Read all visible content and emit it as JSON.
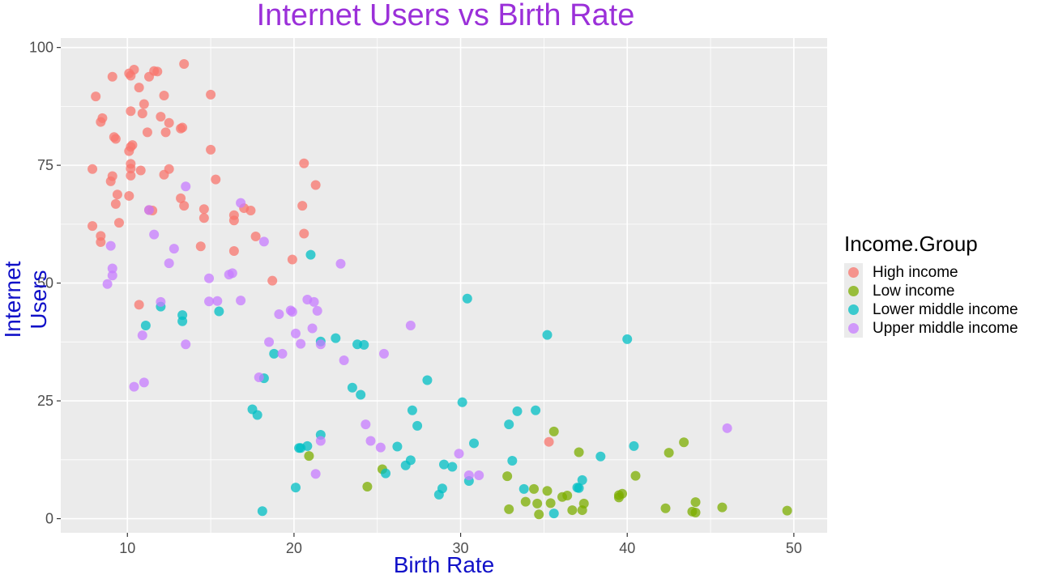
{
  "chart_data": {
    "type": "scatter",
    "title": "Internet Users vs Birth Rate",
    "xlabel": "Birth Rate",
    "ylabel": "Internet Users",
    "xlim": [
      6,
      52
    ],
    "ylim": [
      -3,
      102
    ],
    "x_ticks": [
      10,
      20,
      30,
      40,
      50
    ],
    "y_ticks": [
      0,
      25,
      50,
      75,
      100
    ],
    "grid": true,
    "legend": {
      "title": "Income.Group",
      "position": "right"
    },
    "colors": {
      "title": "#9b30d9",
      "axis_label": "#1010c8",
      "panel": "#ebebeb",
      "grid": "#ffffff"
    },
    "series": [
      {
        "name": "High income",
        "color": "#F8766D",
        "points": [
          [
            10.1,
            94.5
          ],
          [
            10.4,
            95.3
          ],
          [
            11.6,
            95.0
          ],
          [
            11.8,
            94.9
          ],
          [
            13.4,
            96.5
          ],
          [
            9.1,
            93.8
          ],
          [
            10.2,
            94.0
          ],
          [
            11.3,
            93.8
          ],
          [
            8.1,
            89.6
          ],
          [
            10.7,
            91.5
          ],
          [
            12.2,
            89.8
          ],
          [
            15.0,
            90.0
          ],
          [
            11.0,
            88.0
          ],
          [
            10.2,
            86.5
          ],
          [
            10.9,
            86.0
          ],
          [
            12.0,
            85.3
          ],
          [
            8.5,
            85.0
          ],
          [
            8.4,
            84.2
          ],
          [
            12.5,
            84.0
          ],
          [
            13.2,
            82.8
          ],
          [
            13.3,
            83.0
          ],
          [
            11.2,
            82.0
          ],
          [
            12.3,
            82.0
          ],
          [
            9.2,
            81.0
          ],
          [
            9.3,
            80.6
          ],
          [
            10.3,
            79.3
          ],
          [
            10.2,
            78.9
          ],
          [
            10.1,
            78.0
          ],
          [
            15.0,
            78.3
          ],
          [
            10.2,
            75.3
          ],
          [
            10.2,
            74.3
          ],
          [
            10.8,
            73.9
          ],
          [
            12.5,
            74.2
          ],
          [
            7.9,
            74.2
          ],
          [
            20.6,
            75.4
          ],
          [
            9.1,
            72.7
          ],
          [
            10.2,
            72.8
          ],
          [
            12.2,
            73.0
          ],
          [
            15.3,
            72.0
          ],
          [
            9.0,
            71.6
          ],
          [
            21.3,
            70.8
          ],
          [
            9.4,
            68.8
          ],
          [
            10.1,
            68.5
          ],
          [
            13.2,
            68.0
          ],
          [
            9.3,
            66.8
          ],
          [
            13.4,
            66.4
          ],
          [
            20.5,
            66.4
          ],
          [
            14.6,
            65.7
          ],
          [
            11.3,
            65.5
          ],
          [
            11.5,
            65.4
          ],
          [
            17.0,
            65.9
          ],
          [
            17.4,
            65.4
          ],
          [
            14.6,
            63.8
          ],
          [
            16.4,
            64.4
          ],
          [
            16.4,
            63.3
          ],
          [
            9.5,
            62.8
          ],
          [
            7.9,
            62.1
          ],
          [
            17.7,
            59.9
          ],
          [
            8.4,
            60.0
          ],
          [
            20.6,
            60.5
          ],
          [
            8.4,
            58.7
          ],
          [
            14.4,
            57.8
          ],
          [
            16.4,
            56.8
          ],
          [
            19.9,
            55.0
          ],
          [
            18.7,
            50.5
          ],
          [
            10.7,
            45.4
          ],
          [
            35.3,
            16.3
          ]
        ]
      },
      {
        "name": "Low income",
        "color": "#7CAE00",
        "points": [
          [
            35.6,
            18.5
          ],
          [
            37.1,
            14.1
          ],
          [
            42.5,
            14.0
          ],
          [
            43.4,
            16.2
          ],
          [
            20.9,
            13.3
          ],
          [
            25.3,
            10.5
          ],
          [
            32.8,
            9.0
          ],
          [
            40.5,
            9.1
          ],
          [
            24.4,
            6.8
          ],
          [
            34.4,
            6.3
          ],
          [
            35.2,
            5.9
          ],
          [
            36.1,
            4.6
          ],
          [
            36.4,
            4.9
          ],
          [
            39.5,
            5.0
          ],
          [
            39.7,
            5.3
          ],
          [
            39.5,
            4.5
          ],
          [
            33.9,
            3.6
          ],
          [
            34.6,
            3.2
          ],
          [
            35.4,
            3.3
          ],
          [
            37.4,
            3.2
          ],
          [
            44.1,
            3.5
          ],
          [
            32.9,
            2.0
          ],
          [
            36.7,
            1.8
          ],
          [
            37.3,
            1.8
          ],
          [
            42.3,
            2.2
          ],
          [
            45.7,
            2.4
          ],
          [
            49.6,
            1.7
          ],
          [
            34.7,
            0.9
          ],
          [
            43.9,
            1.5
          ],
          [
            44.1,
            1.3
          ]
        ]
      },
      {
        "name": "Lower middle income",
        "color": "#00BFC4",
        "points": [
          [
            21.0,
            56.0
          ],
          [
            30.4,
            46.7
          ],
          [
            35.2,
            39.0
          ],
          [
            40.0,
            38.1
          ],
          [
            15.5,
            44.0
          ],
          [
            12.0,
            45.0
          ],
          [
            13.3,
            43.2
          ],
          [
            13.3,
            41.9
          ],
          [
            11.1,
            41.0
          ],
          [
            22.5,
            38.3
          ],
          [
            21.6,
            37.6
          ],
          [
            23.8,
            37.0
          ],
          [
            24.2,
            36.9
          ],
          [
            18.8,
            35.0
          ],
          [
            18.2,
            29.8
          ],
          [
            28.0,
            29.4
          ],
          [
            23.5,
            27.8
          ],
          [
            24.0,
            26.3
          ],
          [
            30.1,
            24.7
          ],
          [
            17.5,
            23.2
          ],
          [
            17.8,
            22.0
          ],
          [
            27.1,
            23.0
          ],
          [
            33.4,
            22.8
          ],
          [
            34.5,
            23.0
          ],
          [
            27.4,
            19.7
          ],
          [
            32.9,
            20.0
          ],
          [
            21.6,
            17.8
          ],
          [
            20.8,
            15.4
          ],
          [
            20.3,
            15.0
          ],
          [
            20.4,
            15.0
          ],
          [
            26.2,
            15.3
          ],
          [
            30.8,
            16.0
          ],
          [
            40.4,
            15.4
          ],
          [
            38.4,
            13.2
          ],
          [
            33.1,
            12.3
          ],
          [
            27.0,
            12.4
          ],
          [
            26.7,
            11.3
          ],
          [
            29.0,
            11.5
          ],
          [
            29.5,
            11.0
          ],
          [
            25.5,
            9.6
          ],
          [
            30.5,
            8.0
          ],
          [
            37.3,
            8.2
          ],
          [
            20.1,
            6.6
          ],
          [
            28.9,
            6.4
          ],
          [
            33.8,
            6.3
          ],
          [
            37.1,
            6.5
          ],
          [
            37.0,
            6.6
          ],
          [
            28.7,
            5.1
          ],
          [
            18.1,
            1.6
          ],
          [
            35.6,
            1.1
          ]
        ]
      },
      {
        "name": "Upper middle income",
        "color": "#C77CFF",
        "points": [
          [
            13.5,
            70.5
          ],
          [
            16.8,
            67.0
          ],
          [
            11.3,
            65.5
          ],
          [
            11.6,
            60.3
          ],
          [
            18.2,
            58.8
          ],
          [
            9.0,
            57.9
          ],
          [
            12.8,
            57.3
          ],
          [
            22.8,
            54.1
          ],
          [
            12.5,
            54.2
          ],
          [
            9.1,
            53.1
          ],
          [
            9.1,
            51.6
          ],
          [
            16.1,
            51.8
          ],
          [
            16.3,
            52.1
          ],
          [
            14.9,
            51.0
          ],
          [
            8.8,
            49.8
          ],
          [
            14.9,
            46.1
          ],
          [
            15.4,
            46.2
          ],
          [
            16.8,
            46.3
          ],
          [
            20.8,
            46.5
          ],
          [
            21.2,
            46.0
          ],
          [
            12.0,
            46.0
          ],
          [
            21.4,
            44.1
          ],
          [
            19.8,
            44.2
          ],
          [
            19.9,
            43.9
          ],
          [
            19.1,
            43.4
          ],
          [
            27.0,
            41.0
          ],
          [
            21.1,
            40.4
          ],
          [
            20.1,
            39.3
          ],
          [
            10.9,
            38.9
          ],
          [
            18.5,
            37.5
          ],
          [
            13.5,
            37.0
          ],
          [
            20.4,
            37.1
          ],
          [
            21.6,
            37.0
          ],
          [
            19.3,
            35.0
          ],
          [
            25.4,
            35.0
          ],
          [
            23.0,
            33.6
          ],
          [
            17.9,
            30.0
          ],
          [
            11.0,
            28.9
          ],
          [
            10.4,
            28.0
          ],
          [
            24.3,
            20.0
          ],
          [
            46.0,
            19.2
          ],
          [
            21.6,
            16.5
          ],
          [
            24.6,
            16.5
          ],
          [
            25.2,
            15.1
          ],
          [
            29.9,
            13.8
          ],
          [
            30.5,
            9.2
          ],
          [
            31.1,
            9.2
          ],
          [
            21.3,
            9.5
          ]
        ]
      }
    ]
  }
}
